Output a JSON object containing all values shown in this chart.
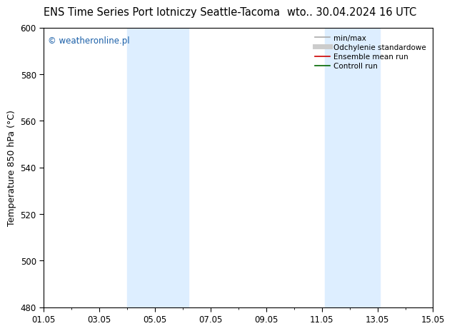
{
  "title_left": "ENS Time Series Port lotniczy Seattle-Tacoma",
  "title_right": "wto.. 30.04.2024 16 UTC",
  "ylabel": "Temperature 850 hPa (°C)",
  "ylim": [
    480,
    600
  ],
  "yticks": [
    480,
    500,
    520,
    540,
    560,
    580,
    600
  ],
  "xtick_labels": [
    "01.05",
    "03.05",
    "05.05",
    "07.05",
    "09.05",
    "11.05",
    "13.05",
    "15.05"
  ],
  "xtick_positions": [
    0,
    2,
    4,
    6,
    8,
    10,
    12,
    14
  ],
  "xlim": [
    0,
    14
  ],
  "shaded_bands": [
    {
      "x_start": 3.0,
      "x_end": 5.2,
      "color": "#ddeeff"
    },
    {
      "x_start": 10.1,
      "x_end": 12.1,
      "color": "#ddeeff"
    }
  ],
  "watermark": "© weatheronline.pl",
  "watermark_color": "#1a5fa8",
  "legend_items": [
    {
      "label": "min/max",
      "color": "#aaaaaa",
      "lw": 1.2,
      "ls": "-"
    },
    {
      "label": "Odchylenie standardowe",
      "color": "#cccccc",
      "lw": 5,
      "ls": "-"
    },
    {
      "label": "Ensemble mean run",
      "color": "#cc0000",
      "lw": 1.2,
      "ls": "-"
    },
    {
      "label": "Controll run",
      "color": "#006600",
      "lw": 1.2,
      "ls": "-"
    }
  ],
  "background_color": "#ffffff",
  "plot_bg_color": "#ffffff",
  "title_fontsize": 10.5,
  "axis_label_fontsize": 9,
  "tick_fontsize": 8.5,
  "watermark_fontsize": 8.5,
  "legend_fontsize": 7.5
}
